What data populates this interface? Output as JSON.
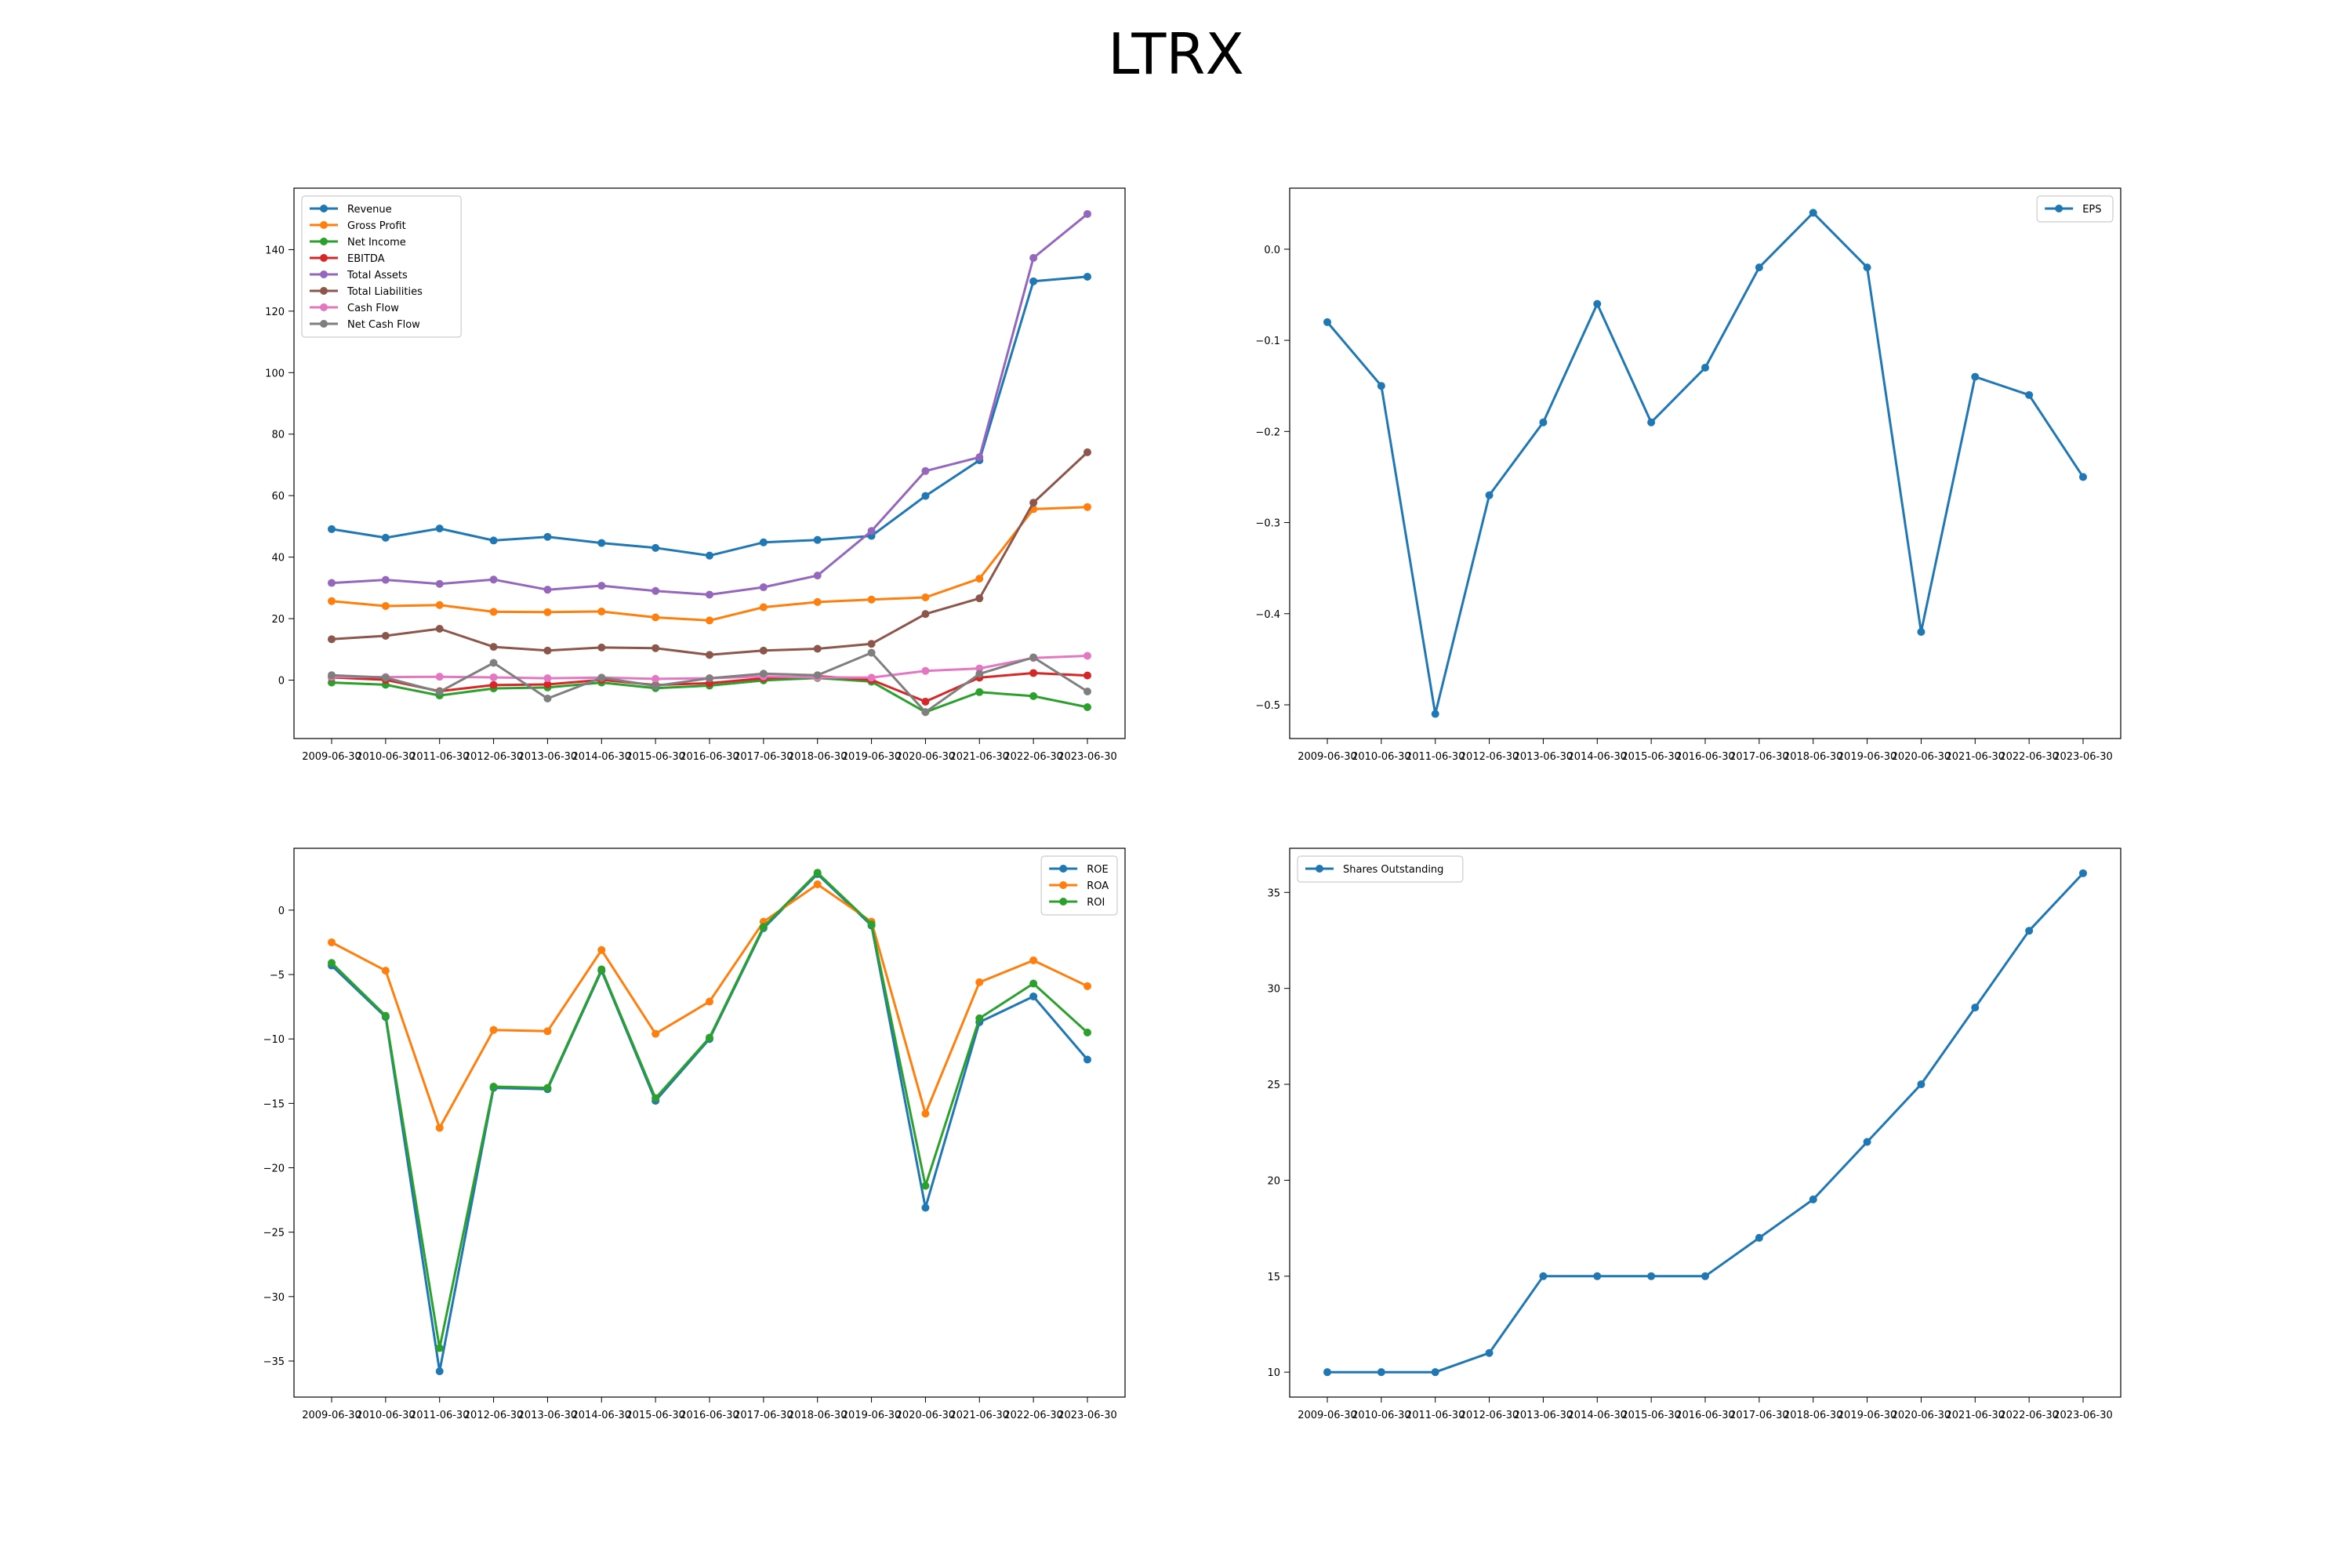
{
  "title": "LTRX",
  "chart_data": [
    {
      "type": "line",
      "legend": "top-left",
      "ylim": [
        -19,
        160
      ],
      "yticks": [
        0,
        20,
        40,
        60,
        80,
        100,
        120,
        140
      ],
      "x": [
        "2009-06-30",
        "2010-06-30",
        "2011-06-30",
        "2012-06-30",
        "2013-06-30",
        "2014-06-30",
        "2015-06-30",
        "2016-06-30",
        "2017-06-30",
        "2018-06-30",
        "2019-06-30",
        "2020-06-30",
        "2021-06-30",
        "2022-06-30",
        "2023-06-30"
      ],
      "series": [
        {
          "name": "Revenue",
          "color": "#1f77b4",
          "values": [
            49.1,
            46.3,
            49.3,
            45.4,
            46.6,
            44.6,
            43.0,
            40.5,
            44.8,
            45.6,
            46.9,
            59.9,
            71.5,
            129.7,
            131.2
          ]
        },
        {
          "name": "Gross Profit",
          "color": "#ff7f0e",
          "values": [
            25.7,
            24.1,
            24.4,
            22.2,
            22.1,
            22.3,
            20.4,
            19.4,
            23.7,
            25.4,
            26.2,
            26.9,
            33.0,
            55.6,
            56.3
          ]
        },
        {
          "name": "Net Income",
          "color": "#2ca02c",
          "values": [
            -0.8,
            -1.5,
            -5.0,
            -2.7,
            -2.4,
            -0.8,
            -2.6,
            -1.8,
            -0.1,
            0.7,
            -0.5,
            -10.4,
            -3.9,
            -5.2,
            -8.8
          ]
        },
        {
          "name": "EBITDA",
          "color": "#d62728",
          "values": [
            0.9,
            0.1,
            -3.6,
            -1.6,
            -1.4,
            0.1,
            -1.6,
            -1.0,
            0.6,
            1.3,
            0.1,
            -7.0,
            0.8,
            2.3,
            1.5
          ]
        },
        {
          "name": "Total Assets",
          "color": "#9467bd",
          "values": [
            31.6,
            32.6,
            31.3,
            32.7,
            29.4,
            30.7,
            29.0,
            27.8,
            30.2,
            34.0,
            48.5,
            68.0,
            72.5,
            137.3,
            151.6
          ]
        },
        {
          "name": "Total Liabilities",
          "color": "#8c564b",
          "values": [
            13.3,
            14.4,
            16.7,
            10.8,
            9.6,
            10.6,
            10.4,
            8.2,
            9.6,
            10.2,
            11.8,
            21.5,
            26.6,
            57.7,
            74.1
          ]
        },
        {
          "name": "Cash Flow",
          "color": "#e377c2",
          "values": [
            1.1,
            1.0,
            1.1,
            0.9,
            0.6,
            0.8,
            0.4,
            0.6,
            1.2,
            0.9,
            0.8,
            3.0,
            3.8,
            7.2,
            7.9
          ]
        },
        {
          "name": "Net Cash Flow",
          "color": "#7f7f7f",
          "values": [
            1.6,
            0.8,
            -3.8,
            5.6,
            -6.0,
            0.8,
            -1.9,
            0.6,
            2.1,
            1.6,
            8.9,
            -10.4,
            2.0,
            7.4,
            -3.7
          ]
        }
      ]
    },
    {
      "type": "line",
      "legend": "top-right",
      "ylim": [
        -0.537,
        0.067
      ],
      "yticks": [
        -0.5,
        -0.4,
        -0.3,
        -0.2,
        -0.1,
        0.0
      ],
      "ytick_labels": [
        "−0.5",
        "−0.4",
        "−0.3",
        "−0.2",
        "−0.1",
        "0.0"
      ],
      "x": [
        "2009-06-30",
        "2010-06-30",
        "2011-06-30",
        "2012-06-30",
        "2013-06-30",
        "2014-06-30",
        "2015-06-30",
        "2016-06-30",
        "2017-06-30",
        "2018-06-30",
        "2019-06-30",
        "2020-06-30",
        "2021-06-30",
        "2022-06-30",
        "2023-06-30"
      ],
      "series": [
        {
          "name": "EPS",
          "color": "#1f77b4",
          "values": [
            -0.08,
            -0.15,
            -0.51,
            -0.27,
            -0.19,
            -0.06,
            -0.19,
            -0.13,
            -0.02,
            0.04,
            -0.02,
            -0.42,
            -0.14,
            -0.16,
            -0.25
          ]
        }
      ]
    },
    {
      "type": "line",
      "legend": "top-right",
      "ylim": [
        -37.8,
        4.8
      ],
      "yticks": [
        -35,
        -30,
        -25,
        -20,
        -15,
        -10,
        -5,
        0
      ],
      "ytick_labels": [
        "−35",
        "−30",
        "−25",
        "−20",
        "−15",
        "−10",
        "−5",
        "0"
      ],
      "x": [
        "2009-06-30",
        "2010-06-30",
        "2011-06-30",
        "2012-06-30",
        "2013-06-30",
        "2014-06-30",
        "2015-06-30",
        "2016-06-30",
        "2017-06-30",
        "2018-06-30",
        "2019-06-30",
        "2020-06-30",
        "2021-06-30",
        "2022-06-30",
        "2023-06-30"
      ],
      "series": [
        {
          "name": "ROE",
          "color": "#1f77b4",
          "values": [
            -4.3,
            -8.3,
            -35.8,
            -13.8,
            -13.9,
            -4.7,
            -14.8,
            -10.0,
            -1.4,
            2.8,
            -1.2,
            -23.1,
            -8.7,
            -6.7,
            -11.6
          ]
        },
        {
          "name": "ROA",
          "color": "#ff7f0e",
          "values": [
            -2.5,
            -4.7,
            -16.9,
            -9.3,
            -9.4,
            -3.1,
            -9.6,
            -7.1,
            -0.9,
            2.0,
            -0.9,
            -15.8,
            -5.6,
            -3.9,
            -5.9
          ]
        },
        {
          "name": "ROI",
          "color": "#2ca02c",
          "values": [
            -4.1,
            -8.2,
            -34.0,
            -13.7,
            -13.8,
            -4.6,
            -14.6,
            -9.9,
            -1.3,
            2.9,
            -1.1,
            -21.4,
            -8.4,
            -5.7,
            -9.5
          ]
        }
      ]
    },
    {
      "type": "line",
      "legend": "top-left",
      "ylim": [
        8.7,
        37.3
      ],
      "yticks": [
        10,
        15,
        20,
        25,
        30,
        35
      ],
      "x": [
        "2009-06-30",
        "2010-06-30",
        "2011-06-30",
        "2012-06-30",
        "2013-06-30",
        "2014-06-30",
        "2015-06-30",
        "2016-06-30",
        "2017-06-30",
        "2018-06-30",
        "2019-06-30",
        "2020-06-30",
        "2021-06-30",
        "2022-06-30",
        "2023-06-30"
      ],
      "series": [
        {
          "name": "Shares Outstanding",
          "color": "#1f77b4",
          "values": [
            10,
            10,
            10,
            11,
            15,
            15,
            15,
            15,
            17,
            19,
            22,
            25,
            29,
            33,
            36
          ]
        }
      ]
    }
  ]
}
